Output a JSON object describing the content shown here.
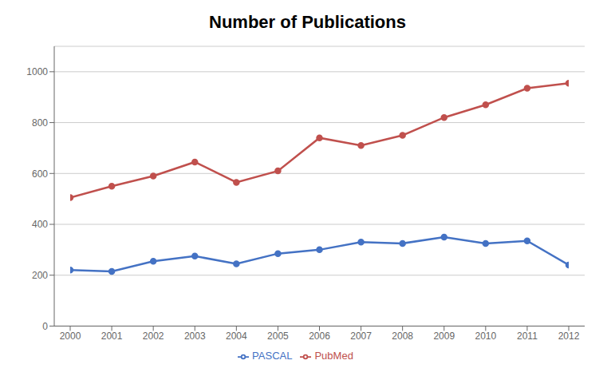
{
  "chart_data": {
    "type": "line",
    "title": "Number of Publications",
    "x": [
      2000,
      2001,
      2002,
      2003,
      2004,
      2005,
      2006,
      2007,
      2008,
      2009,
      2010,
      2011,
      2012
    ],
    "series": [
      {
        "name": "PASCAL",
        "color": "#4472C4",
        "marker": "circle",
        "values": [
          220,
          215,
          255,
          275,
          245,
          285,
          300,
          330,
          325,
          350,
          325,
          335,
          240
        ]
      },
      {
        "name": "PubMed",
        "color": "#C0504D",
        "marker": "circle",
        "values": [
          505,
          550,
          590,
          645,
          565,
          610,
          740,
          710,
          750,
          820,
          870,
          935,
          955
        ]
      }
    ],
    "xlim": [
      2000,
      2012
    ],
    "xticks": [
      2000,
      2001,
      2002,
      2003,
      2004,
      2005,
      2006,
      2007,
      2008,
      2009,
      2010,
      2011,
      2012
    ],
    "ylim": [
      0,
      1100
    ],
    "yticks": [
      0,
      200,
      400,
      600,
      800,
      1000
    ],
    "grid": true,
    "legend": "bottom"
  }
}
